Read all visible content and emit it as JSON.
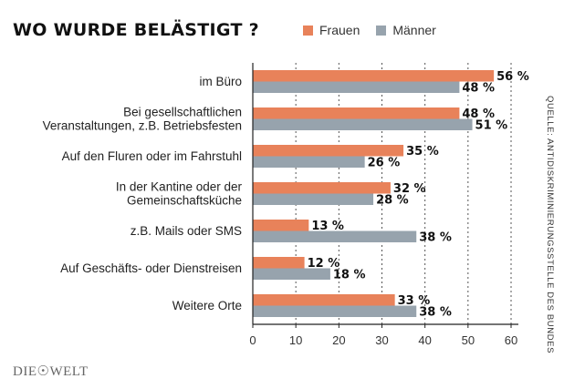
{
  "chart_data": {
    "type": "bar",
    "orientation": "horizontal",
    "title": "WO WURDE BELÄSTIGT ?",
    "categories": [
      [
        "im Büro"
      ],
      [
        "Bei gesellschaftlichen",
        "Veranstaltungen, z.B. Betriebsfesten"
      ],
      [
        "Auf den Fluren oder im Fahrstuhl"
      ],
      [
        "In der Kantine oder der",
        "Gemeinschaftsküche"
      ],
      [
        "z.B. Mails oder SMS"
      ],
      [
        "Auf Geschäfts- oder Dienstreisen"
      ],
      [
        "Weitere Orte"
      ]
    ],
    "series": [
      {
        "name": "Frauen",
        "color": "#e8825a",
        "values": [
          56,
          48,
          35,
          32,
          13,
          12,
          33
        ]
      },
      {
        "name": "Männer",
        "color": "#97a3ad",
        "values": [
          48,
          51,
          26,
          28,
          38,
          18,
          38
        ]
      }
    ],
    "value_suffix": " %",
    "xlim": [
      0,
      60
    ],
    "xticks": [
      0,
      10,
      20,
      30,
      40,
      50,
      60
    ],
    "grid": true,
    "legend_position": "top"
  },
  "source": "QUELLE: ANTIDISKRIMINIERUNGSSTELLE DES BUNDES",
  "brand": "DIE☉WELT"
}
